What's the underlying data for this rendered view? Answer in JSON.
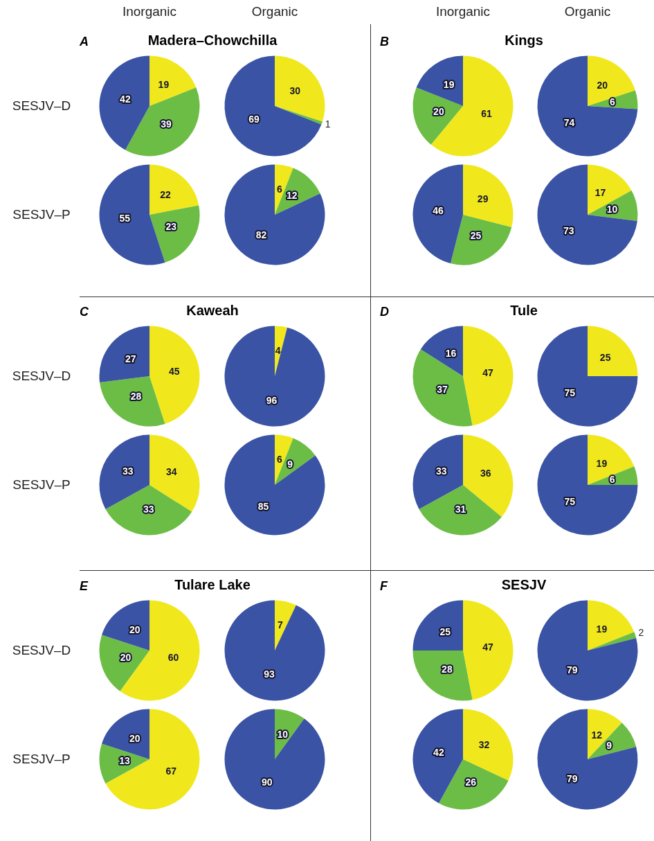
{
  "chart_data": [
    {
      "type": "pie",
      "title": "Madera–Chowchilla",
      "subtitle": "A",
      "ylabel": "SESJV–D",
      "annotations": [
        "Inorganic"
      ],
      "categories": [
        null,
        null,
        null
      ],
      "values": [
        19,
        39,
        42
      ],
      "colors": [
        "#f0e81c",
        "#6cbd45",
        "#3a53a4"
      ],
      "data_labels": true
    },
    {
      "type": "pie",
      "annotations": [
        "Organic"
      ],
      "categories": [
        null,
        null,
        null
      ],
      "values": [
        30,
        1,
        69
      ],
      "colors": [
        "#f0e81c",
        "#6cbd45",
        "#3a53a4"
      ],
      "data_labels": true
    },
    {
      "type": "pie",
      "ylabel": "SESJV–P",
      "categories": [
        null,
        null,
        null
      ],
      "values": [
        22,
        23,
        55
      ],
      "colors": [
        "#f0e81c",
        "#6cbd45",
        "#3a53a4"
      ],
      "data_labels": true
    },
    {
      "type": "pie",
      "categories": [
        null,
        null,
        null
      ],
      "values": [
        6,
        12,
        82
      ],
      "colors": [
        "#f0e81c",
        "#6cbd45",
        "#3a53a4"
      ],
      "data_labels": true
    },
    {
      "type": "pie",
      "title": "Kings",
      "subtitle": "B",
      "annotations": [
        "Inorganic"
      ],
      "categories": [
        null,
        null,
        null
      ],
      "values": [
        61,
        20,
        19
      ],
      "colors": [
        "#f0e81c",
        "#6cbd45",
        "#3a53a4"
      ],
      "data_labels": true
    },
    {
      "type": "pie",
      "annotations": [
        "Organic"
      ],
      "categories": [
        null,
        null,
        null
      ],
      "values": [
        20,
        6,
        74
      ],
      "colors": [
        "#f0e81c",
        "#6cbd45",
        "#3a53a4"
      ],
      "data_labels": true
    },
    {
      "type": "pie",
      "categories": [
        null,
        null,
        null
      ],
      "values": [
        29,
        25,
        46
      ],
      "colors": [
        "#f0e81c",
        "#6cbd45",
        "#3a53a4"
      ],
      "data_labels": true
    },
    {
      "type": "pie",
      "categories": [
        null,
        null,
        null
      ],
      "values": [
        17,
        10,
        73
      ],
      "colors": [
        "#f0e81c",
        "#6cbd45",
        "#3a53a4"
      ],
      "data_labels": true
    },
    {
      "type": "pie",
      "title": "Kaweah",
      "subtitle": "C",
      "ylabel": "SESJV–D",
      "categories": [
        null,
        null,
        null
      ],
      "values": [
        45,
        28,
        27
      ],
      "colors": [
        "#f0e81c",
        "#6cbd45",
        "#3a53a4"
      ],
      "data_labels": true
    },
    {
      "type": "pie",
      "categories": [
        null,
        null
      ],
      "values": [
        4,
        96
      ],
      "colors": [
        "#f0e81c",
        "#3a53a4"
      ],
      "data_labels": true
    },
    {
      "type": "pie",
      "ylabel": "SESJV–P",
      "categories": [
        null,
        null,
        null
      ],
      "values": [
        34,
        33,
        33
      ],
      "colors": [
        "#f0e81c",
        "#6cbd45",
        "#3a53a4"
      ],
      "data_labels": true
    },
    {
      "type": "pie",
      "categories": [
        null,
        null,
        null
      ],
      "values": [
        6,
        9,
        85
      ],
      "colors": [
        "#f0e81c",
        "#6cbd45",
        "#3a53a4"
      ],
      "data_labels": true
    },
    {
      "type": "pie",
      "title": "Tule",
      "subtitle": "D",
      "categories": [
        null,
        null,
        null
      ],
      "values": [
        47,
        37,
        16
      ],
      "colors": [
        "#f0e81c",
        "#6cbd45",
        "#3a53a4"
      ],
      "data_labels": true
    },
    {
      "type": "pie",
      "categories": [
        null,
        null
      ],
      "values": [
        25,
        75
      ],
      "colors": [
        "#f0e81c",
        "#3a53a4"
      ],
      "data_labels": true
    },
    {
      "type": "pie",
      "categories": [
        null,
        null,
        null
      ],
      "values": [
        36,
        31,
        33
      ],
      "colors": [
        "#f0e81c",
        "#6cbd45",
        "#3a53a4"
      ],
      "data_labels": true
    },
    {
      "type": "pie",
      "categories": [
        null,
        null,
        null
      ],
      "values": [
        19,
        6,
        75
      ],
      "colors": [
        "#f0e81c",
        "#6cbd45",
        "#3a53a4"
      ],
      "data_labels": true
    },
    {
      "type": "pie",
      "title": "Tulare Lake",
      "subtitle": "E",
      "ylabel": "SESJV–D",
      "categories": [
        null,
        null,
        null
      ],
      "values": [
        60,
        20,
        20
      ],
      "colors": [
        "#f0e81c",
        "#6cbd45",
        "#3a53a4"
      ],
      "data_labels": true
    },
    {
      "type": "pie",
      "categories": [
        null,
        null
      ],
      "values": [
        7,
        93
      ],
      "colors": [
        "#f0e81c",
        "#3a53a4"
      ],
      "data_labels": true
    },
    {
      "type": "pie",
      "ylabel": "SESJV–P",
      "categories": [
        null,
        null,
        null
      ],
      "values": [
        67,
        13,
        20
      ],
      "colors": [
        "#f0e81c",
        "#6cbd45",
        "#3a53a4"
      ],
      "data_labels": true
    },
    {
      "type": "pie",
      "categories": [
        null,
        null
      ],
      "values": [
        10,
        90
      ],
      "colors": [
        "#6cbd45",
        "#3a53a4"
      ],
      "data_labels": true
    },
    {
      "type": "pie",
      "title": "SESJV",
      "subtitle": "F",
      "categories": [
        null,
        null,
        null
      ],
      "values": [
        47,
        28,
        25
      ],
      "colors": [
        "#f0e81c",
        "#6cbd45",
        "#3a53a4"
      ],
      "data_labels": true
    },
    {
      "type": "pie",
      "categories": [
        null,
        null,
        null
      ],
      "values": [
        19,
        2,
        79
      ],
      "colors": [
        "#f0e81c",
        "#6cbd45",
        "#3a53a4"
      ],
      "data_labels": true
    },
    {
      "type": "pie",
      "categories": [
        null,
        null,
        null
      ],
      "values": [
        32,
        26,
        42
      ],
      "colors": [
        "#f0e81c",
        "#6cbd45",
        "#3a53a4"
      ],
      "data_labels": true
    },
    {
      "type": "pie",
      "categories": [
        null,
        null,
        null
      ],
      "values": [
        12,
        9,
        79
      ],
      "colors": [
        "#f0e81c",
        "#6cbd45",
        "#3a53a4"
      ],
      "data_labels": true
    }
  ]
}
